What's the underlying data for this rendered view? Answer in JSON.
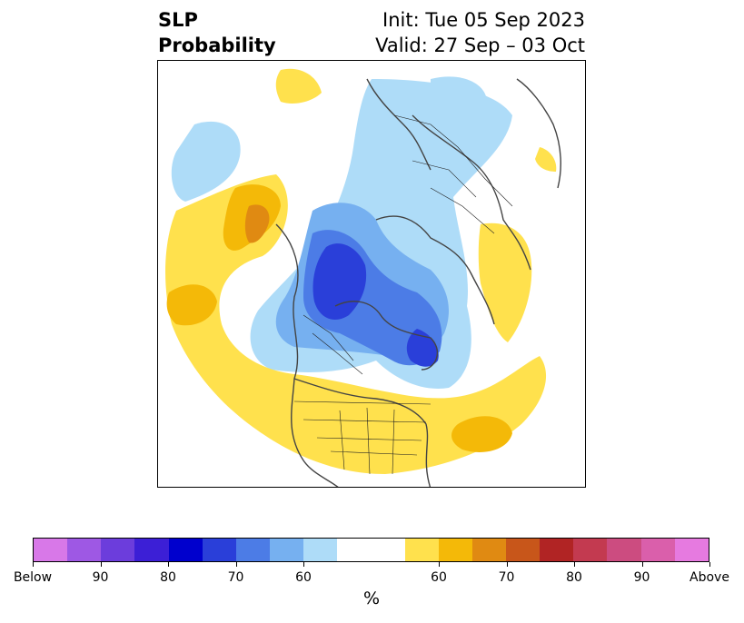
{
  "title": {
    "left_line1": "SLP",
    "left_line2": "Probability",
    "init": "Init: Tue 05 Sep 2023",
    "valid": "Valid: 27 Sep – 03 Oct"
  },
  "map": {
    "field": "SLP",
    "projection": "north polar stereographic",
    "colors": {
      "below_60": "#aedcf8",
      "below_70": "#76b0f0",
      "below_80": "#4c7ce6",
      "below_90": "#2a3fd9",
      "above_60": "#ffe14d",
      "above_70": "#f4b908",
      "above_80": "#e08a12",
      "coast": "#444444",
      "border": "#222222"
    }
  },
  "colorbar": {
    "unit": "%",
    "colors": [
      "#d878e8",
      "#9e58e4",
      "#6c3ddc",
      "#3c1fd6",
      "#0000cd",
      "#2a3fd9",
      "#4c7ce6",
      "#76b0f0",
      "#aedcf8",
      "#ffffff",
      "#ffe14d",
      "#f4b908",
      "#e08a12",
      "#c8561a",
      "#b12424",
      "#c33a50",
      "#cc4c80",
      "#da5fab",
      "#e67ae0"
    ],
    "tick_labels": [
      "Below",
      "90",
      "80",
      "70",
      "60",
      "60",
      "70",
      "80",
      "90",
      "Above"
    ]
  }
}
